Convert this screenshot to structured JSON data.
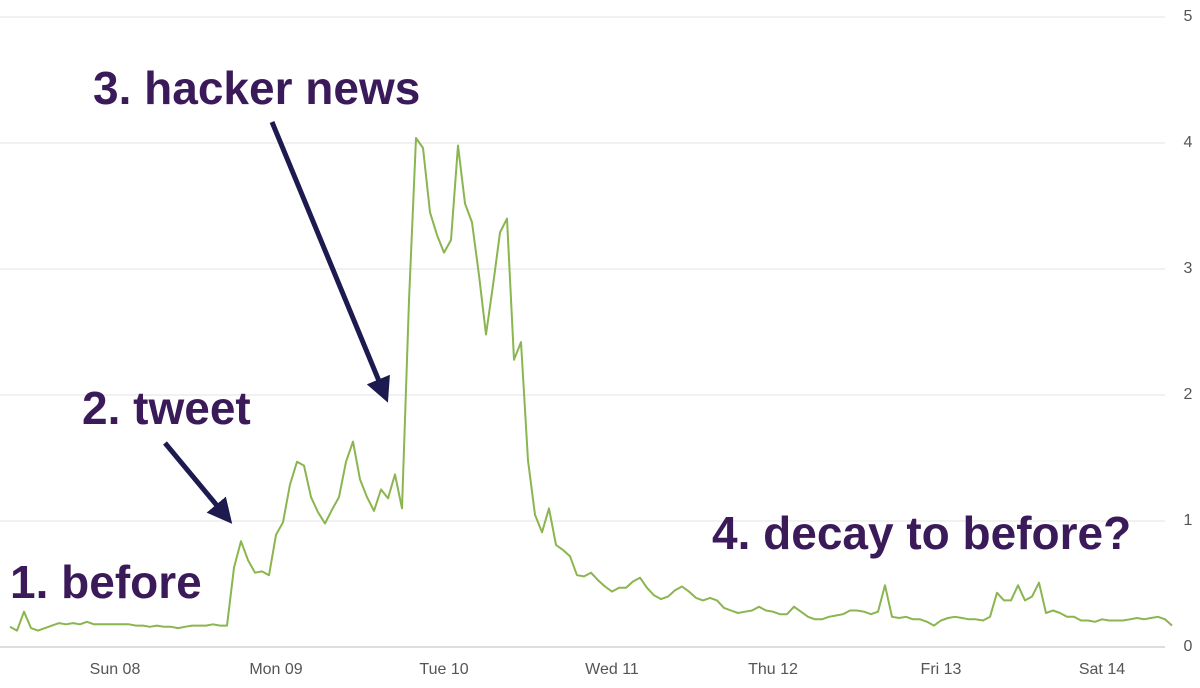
{
  "chart_data": {
    "type": "line",
    "annotations": [
      "1. before",
      "2. tweet",
      "3. hacker news",
      "4. decay to before?"
    ],
    "categories": [
      null,
      null,
      null,
      null,
      null,
      null,
      null,
      null,
      null,
      null,
      null,
      null,
      null,
      null,
      null,
      "Sun 08",
      null,
      null,
      null,
      null,
      null,
      null,
      null,
      null,
      null,
      null,
      null,
      null,
      null,
      null,
      null,
      null,
      null,
      null,
      null,
      null,
      null,
      null,
      "Mon 09",
      null,
      null,
      null,
      null,
      null,
      null,
      null,
      null,
      null,
      null,
      null,
      null,
      null,
      null,
      null,
      null,
      null,
      null,
      null,
      null,
      null,
      null,
      null,
      "Tue 10",
      null,
      null,
      null,
      null,
      null,
      null,
      null,
      null,
      null,
      null,
      null,
      null,
      null,
      null,
      null,
      null,
      null,
      null,
      null,
      null,
      null,
      null,
      null,
      "Wed 11",
      null,
      null,
      null,
      null,
      null,
      null,
      null,
      null,
      null,
      null,
      null,
      null,
      null,
      null,
      null,
      null,
      null,
      null,
      null,
      null,
      null,
      null,
      "Thu 12",
      null,
      null,
      null,
      null,
      null,
      null,
      null,
      null,
      null,
      null,
      null,
      null,
      null,
      null,
      null,
      null,
      null,
      null,
      null,
      null,
      null,
      null,
      null,
      "Fri 13",
      null,
      null,
      null,
      null,
      null,
      null,
      null,
      null,
      null,
      null,
      null,
      null,
      null,
      null,
      null,
      null,
      null,
      null,
      null,
      null,
      null,
      null,
      "Sat 14",
      null,
      null,
      null,
      null,
      null,
      null,
      null,
      null,
      null,
      null
    ],
    "values": [
      0.16,
      0.13,
      0.28,
      0.15,
      0.13,
      0.15,
      0.17,
      0.19,
      0.18,
      0.19,
      0.18,
      0.2,
      0.18,
      0.18,
      0.18,
      0.18,
      0.18,
      0.18,
      0.17,
      0.17,
      0.16,
      0.17,
      0.16,
      0.16,
      0.15,
      0.16,
      0.17,
      0.17,
      0.17,
      0.18,
      0.17,
      0.17,
      0.63,
      0.84,
      0.69,
      0.59,
      0.6,
      0.57,
      0.89,
      0.99,
      1.29,
      1.47,
      1.44,
      1.19,
      1.07,
      0.98,
      1.09,
      1.19,
      1.47,
      1.63,
      1.33,
      1.19,
      1.08,
      1.25,
      1.18,
      1.37,
      1.1,
      2.75,
      4.04,
      3.96,
      3.45,
      3.27,
      3.13,
      3.23,
      3.98,
      3.52,
      3.37,
      2.95,
      2.48,
      2.87,
      3.29,
      3.4,
      2.28,
      2.42,
      1.48,
      1.05,
      0.91,
      1.1,
      0.81,
      0.77,
      0.72,
      0.57,
      0.56,
      0.59,
      0.53,
      0.48,
      0.44,
      0.47,
      0.47,
      0.52,
      0.55,
      0.47,
      0.41,
      0.38,
      0.4,
      0.45,
      0.48,
      0.44,
      0.39,
      0.37,
      0.39,
      0.37,
      0.31,
      0.29,
      0.27,
      0.28,
      0.29,
      0.32,
      0.29,
      0.28,
      0.26,
      0.26,
      0.32,
      0.28,
      0.24,
      0.22,
      0.22,
      0.24,
      0.25,
      0.26,
      0.29,
      0.29,
      0.28,
      0.26,
      0.28,
      0.49,
      0.24,
      0.23,
      0.24,
      0.22,
      0.22,
      0.2,
      0.17,
      0.21,
      0.23,
      0.24,
      0.23,
      0.22,
      0.22,
      0.21,
      0.24,
      0.43,
      0.37,
      0.37,
      0.49,
      0.37,
      0.4,
      0.51,
      0.27,
      0.29,
      0.27,
      0.24,
      0.24,
      0.21,
      0.21,
      0.2,
      0.22,
      0.21,
      0.21,
      0.21,
      0.22,
      0.23,
      0.22,
      0.23,
      0.24,
      0.22,
      0.17
    ],
    "color": "#8ab54f",
    "ylim": [
      0,
      5
    ],
    "yticks": [
      0,
      1,
      2,
      3,
      4,
      5
    ],
    "grid": true
  }
}
